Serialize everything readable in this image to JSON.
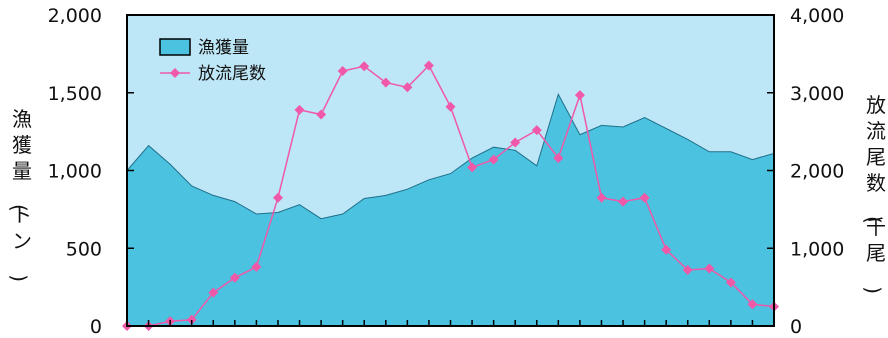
{
  "chart_data": {
    "type": "area",
    "title": "",
    "xlabel": "",
    "ylabel": "漁獲量(トン)",
    "y2label": "放流尾数(千尾)",
    "ylim": [
      0,
      2000
    ],
    "y2lim": [
      0,
      4000
    ],
    "y_ticks": [
      "0",
      "500",
      "1,000",
      "1,500",
      "2,000"
    ],
    "y2_ticks": [
      "0",
      "1,000",
      "2,000",
      "3,000",
      "4,000"
    ],
    "x_count": 31,
    "legend_position": "top-left",
    "grid": false,
    "series": [
      {
        "name": "漁獲量",
        "axis": "left",
        "kind": "area",
        "color": "#4bc3e0",
        "values": [
          1000,
          1160,
          1040,
          900,
          840,
          800,
          720,
          730,
          780,
          690,
          720,
          820,
          840,
          880,
          940,
          980,
          1080,
          1150,
          1130,
          1030,
          1490,
          1230,
          1290,
          1280,
          1340,
          1270,
          1200,
          1120,
          1120,
          1070,
          1110
        ]
      },
      {
        "name": "放流尾数",
        "axis": "right",
        "kind": "line",
        "color": "#f058a8",
        "values": [
          0,
          0,
          60,
          80,
          430,
          620,
          760,
          1650,
          2780,
          2720,
          3280,
          3340,
          3130,
          3070,
          3350,
          2820,
          2040,
          2140,
          2360,
          2520,
          2160,
          2970,
          1650,
          1600,
          1650,
          980,
          720,
          740,
          560,
          280,
          250
        ]
      }
    ],
    "plot_background": "#bde6f7"
  }
}
